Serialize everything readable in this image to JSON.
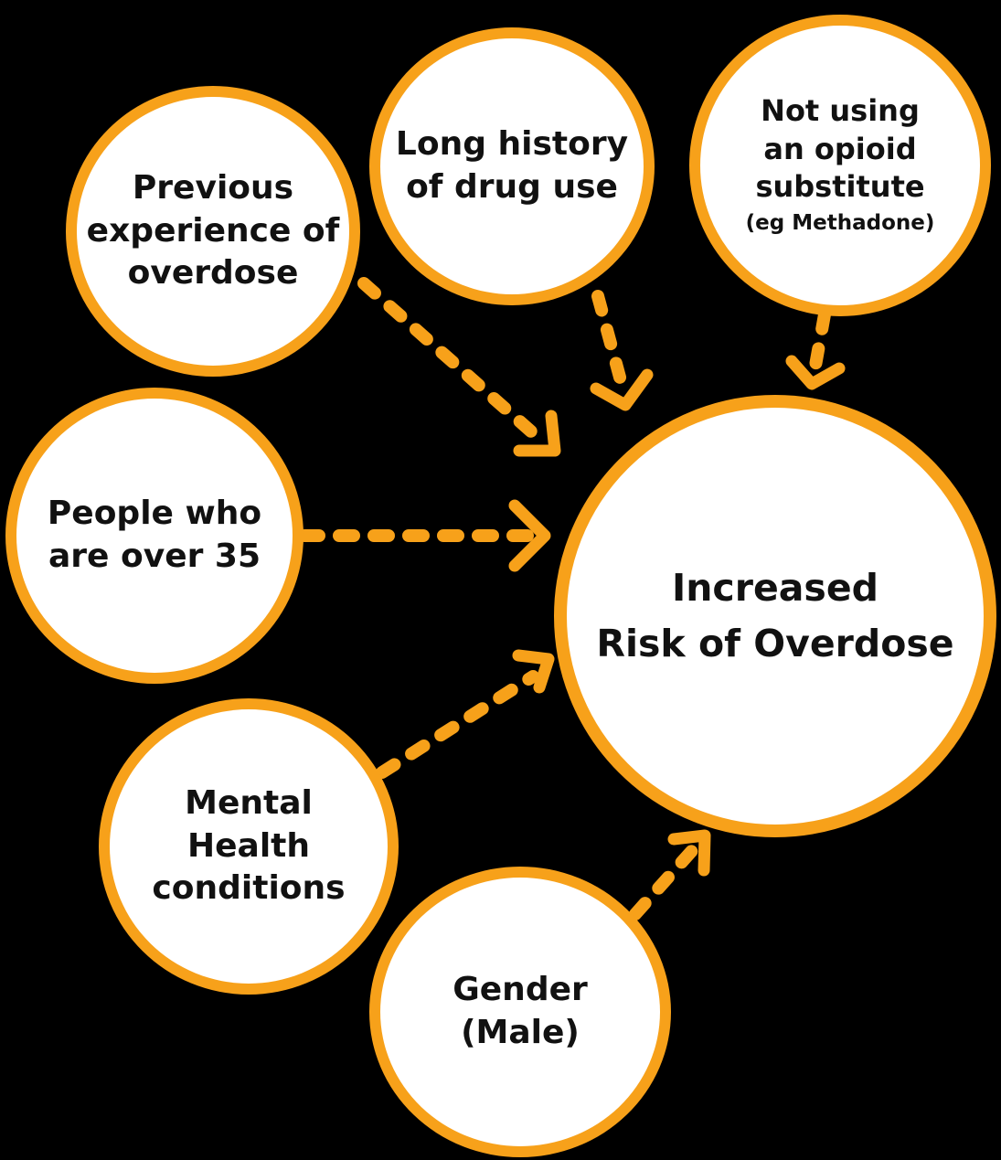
{
  "accent_color": "#F7A11A",
  "background_color": "#000000",
  "nodes": {
    "previous_overdose": {
      "lines": [
        "Previous",
        "experience of",
        "overdose"
      ]
    },
    "long_history": {
      "lines": [
        "Long history",
        "of drug use"
      ]
    },
    "not_using_substitute": {
      "lines": [
        "Not using",
        "an opioid",
        "substitute"
      ],
      "note": "(eg Methadone)"
    },
    "over_35": {
      "lines": [
        "People who",
        "are over 35"
      ]
    },
    "mental_health": {
      "lines": [
        "Mental",
        "Health",
        "conditions"
      ]
    },
    "gender": {
      "lines": [
        "Gender",
        "(Male)"
      ]
    },
    "outcome": {
      "lines": [
        "Increased",
        "Risk of Overdose"
      ]
    }
  }
}
